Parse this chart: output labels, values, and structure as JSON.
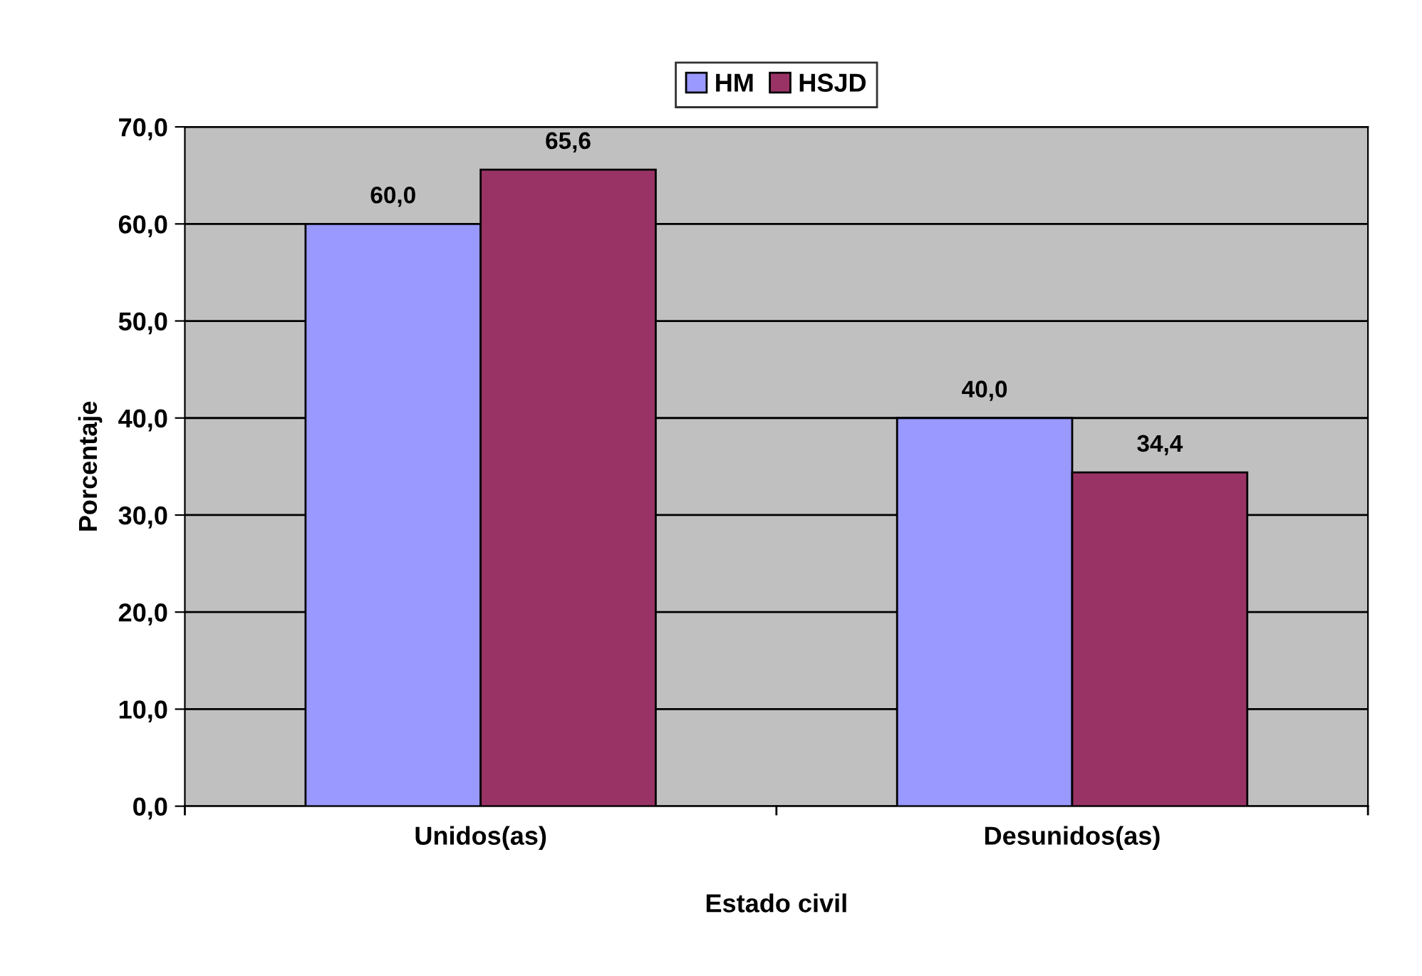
{
  "chart_data": {
    "type": "bar",
    "xlabel": "Estado civil",
    "ylabel": "Porcentaje",
    "categories": [
      "Unidos(as)",
      "Desunidos(as)"
    ],
    "series": [
      {
        "name": "HM",
        "color": "#9999ff",
        "values": [
          60.0,
          40.0
        ],
        "value_labels": [
          "60,0",
          "40,0"
        ]
      },
      {
        "name": "HSJD",
        "color": "#993366",
        "values": [
          65.6,
          34.4
        ],
        "value_labels": [
          "65,6",
          "34,4"
        ]
      }
    ],
    "ylim": [
      0,
      70
    ],
    "yticks": [
      {
        "value": 0,
        "label": "0,0"
      },
      {
        "value": 10,
        "label": "10,0"
      },
      {
        "value": 20,
        "label": "20,0"
      },
      {
        "value": 30,
        "label": "30,0"
      },
      {
        "value": 40,
        "label": "40,0"
      },
      {
        "value": 50,
        "label": "50,0"
      },
      {
        "value": 60,
        "label": "60,0"
      },
      {
        "value": 70,
        "label": "70,0"
      }
    ],
    "grid": "y",
    "legend": "top"
  }
}
